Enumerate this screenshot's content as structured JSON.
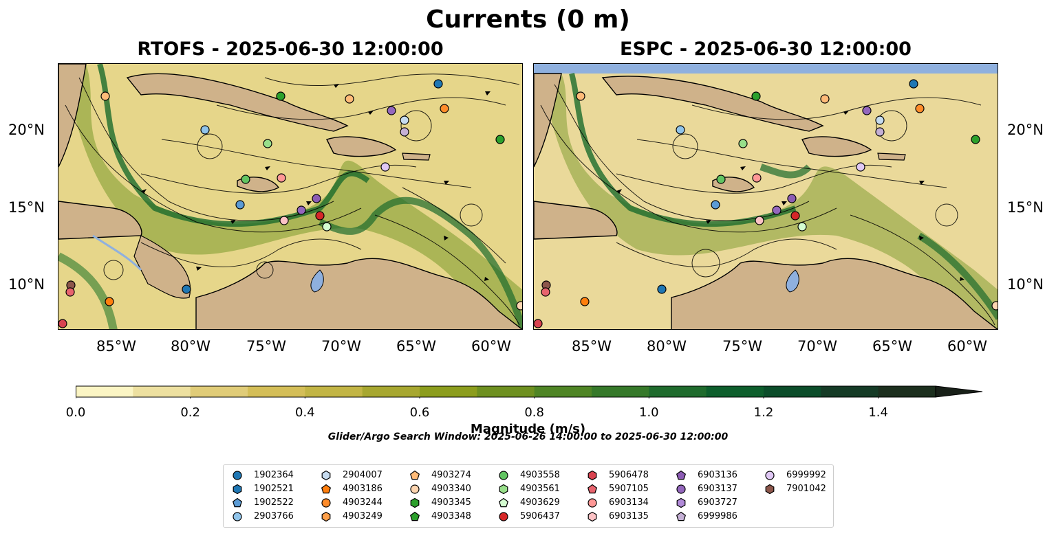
{
  "title": "Currents (0 m)",
  "panels": [
    {
      "title": "RTOFS - 2025-06-30 12:00:00"
    },
    {
      "title": "ESPC - 2025-06-30 12:00:00"
    }
  ],
  "axes": {
    "lon_labels": [
      "85°W",
      "80°W",
      "75°W",
      "70°W",
      "65°W",
      "60°W"
    ],
    "lat_labels": [
      "20°N",
      "15°N",
      "10°N"
    ]
  },
  "colorbar": {
    "label": "Magnitude (m/s)",
    "ticks": [
      "0.0",
      "0.2",
      "0.4",
      "0.6",
      "0.8",
      "1.0",
      "1.2",
      "1.4"
    ],
    "range": [
      0,
      1.6
    ],
    "step": 0.1,
    "extend": "max",
    "colors": [
      "#fbf5c4",
      "#ede0a0",
      "#e0cc78",
      "#d4be58",
      "#c2b545",
      "#a7a730",
      "#8c9d1d",
      "#6e9020",
      "#4f8525",
      "#36792a",
      "#1f6b2d",
      "#0d5e2c",
      "#0b4d2a",
      "#153b26",
      "#1c2f1e",
      "#182018"
    ]
  },
  "search_window": "Glider/Argo Search Window: 2025-06-26 14:00:00 to 2025-06-30 12:00:00",
  "map_colors": {
    "land": "#cfb28a",
    "water_feature": "#8fb0de",
    "ocean_base": "#e8d98e"
  },
  "legend": {
    "items": [
      {
        "id": "1902364",
        "marker": "circle",
        "color": "#1f77b4"
      },
      {
        "id": "1902521",
        "marker": "hexagon",
        "color": "#1f77b4"
      },
      {
        "id": "1902522",
        "marker": "pentagon",
        "color": "#5b9bd5"
      },
      {
        "id": "2903766",
        "marker": "circle",
        "color": "#90c4ea"
      },
      {
        "id": "2904007",
        "marker": "hexagon",
        "color": "#c6dbef"
      },
      {
        "id": "4903186",
        "marker": "pentagon",
        "color": "#ff7f0e"
      },
      {
        "id": "4903244",
        "marker": "circle",
        "color": "#ff8c2a"
      },
      {
        "id": "4903249",
        "marker": "hexagon",
        "color": "#ffa04a"
      },
      {
        "id": "4903274",
        "marker": "pentagon",
        "color": "#ffbb78"
      },
      {
        "id": "4903340",
        "marker": "circle",
        "color": "#fdd5b0"
      },
      {
        "id": "4903345",
        "marker": "hexagon",
        "color": "#2ca02c"
      },
      {
        "id": "4903348",
        "marker": "pentagon",
        "color": "#2ca02c"
      },
      {
        "id": "4903558",
        "marker": "circle",
        "color": "#62c462"
      },
      {
        "id": "4903561",
        "marker": "hexagon",
        "color": "#98df8a"
      },
      {
        "id": "4903629",
        "marker": "pentagon",
        "color": "#d4fcd0"
      },
      {
        "id": "5906437",
        "marker": "circle",
        "color": "#d62728"
      },
      {
        "id": "5906478",
        "marker": "hexagon",
        "color": "#d94350"
      },
      {
        "id": "5907105",
        "marker": "pentagon",
        "color": "#e8646e"
      },
      {
        "id": "6903134",
        "marker": "circle",
        "color": "#ff9896"
      },
      {
        "id": "6903135",
        "marker": "hexagon",
        "color": "#fcc2c5"
      },
      {
        "id": "6903136",
        "marker": "pentagon",
        "color": "#8c5cb4"
      },
      {
        "id": "6903137",
        "marker": "circle",
        "color": "#9467bd"
      },
      {
        "id": "6903727",
        "marker": "hexagon",
        "color": "#b18ad8"
      },
      {
        "id": "6999986",
        "marker": "pentagon",
        "color": "#c5b0d5"
      },
      {
        "id": "6999992",
        "marker": "circle",
        "color": "#e0c8f5"
      },
      {
        "id": "7901042",
        "marker": "hexagon",
        "color": "#8c564b"
      }
    ]
  }
}
